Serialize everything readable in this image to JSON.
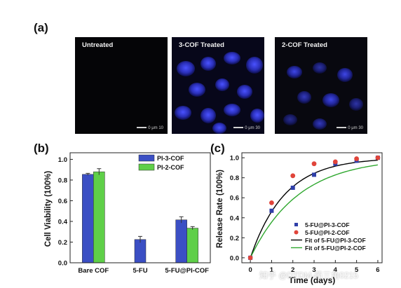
{
  "figure": {
    "label_a": "(a)",
    "label_b": "(b)",
    "label_c": "(c)",
    "watermark": "知乎 @DTDM-药三角0215",
    "colors": {
      "pi3": "#3b4fc4",
      "pi2": "#5fcf48",
      "fit_pi3": "#000000",
      "fit_pi2": "#2fa82f",
      "pts_pi3": "#2f3fa8",
      "pts_pi2": "#e0443a"
    }
  },
  "micrographs": [
    {
      "caption": "Untreated",
      "scale": "0  μm  10"
    },
    {
      "caption": "3-COF Treated",
      "scale": "0  μm  30"
    },
    {
      "caption": "2-COF Treated",
      "scale": "0  μm  30"
    }
  ],
  "chart_data": [
    {
      "type": "bar",
      "ylabel": "Cell Viability (100%)",
      "categories": [
        "Bare COF",
        "5-FU",
        "5-FU@PI-COF"
      ],
      "ylim": [
        0,
        1.0
      ],
      "yticks": [
        "0.0",
        "0.2",
        "0.4",
        "0.6",
        "0.8",
        "1.0"
      ],
      "legend_position": "top-right",
      "series": [
        {
          "name": "PI-3-COF",
          "values": [
            0.855,
            0.225,
            0.415
          ],
          "errors": [
            0.01,
            0.03,
            0.03
          ]
        },
        {
          "name": "PI-2-COF",
          "values": [
            0.88,
            null,
            0.335
          ],
          "errors": [
            0.03,
            null,
            0.015
          ]
        }
      ]
    },
    {
      "type": "scatter",
      "xlabel": "Time (days)",
      "ylabel": "Release Rate (100%)",
      "xlim": [
        -0.4,
        6.2
      ],
      "ylim": [
        -0.05,
        1.05
      ],
      "xticks": [
        "0",
        "1",
        "2",
        "3",
        "4",
        "5",
        "6"
      ],
      "yticks": [
        "0.0",
        "0.2",
        "0.4",
        "0.6",
        "0.8",
        "1.0"
      ],
      "legend_position": "bottom-right",
      "series": [
        {
          "name": "5-FU@PI-3-COF",
          "marker": "square",
          "x": [
            0,
            1,
            2,
            3,
            4,
            5,
            6
          ],
          "y": [
            0.0,
            0.47,
            0.7,
            0.83,
            0.94,
            0.97,
            1.0
          ]
        },
        {
          "name": "5-FU@PI-2-COF",
          "marker": "circle",
          "x": [
            0,
            1,
            2,
            3,
            4,
            5,
            6
          ],
          "y": [
            0.0,
            0.55,
            0.82,
            0.94,
            0.96,
            0.99,
            1.0
          ]
        },
        {
          "name": "Fit of 5-FU@PI-3-COF",
          "marker": "line",
          "k": 0.62
        },
        {
          "name": "Fit of 5-FU@PI-2-COF",
          "marker": "line",
          "k": 0.44
        }
      ]
    }
  ]
}
